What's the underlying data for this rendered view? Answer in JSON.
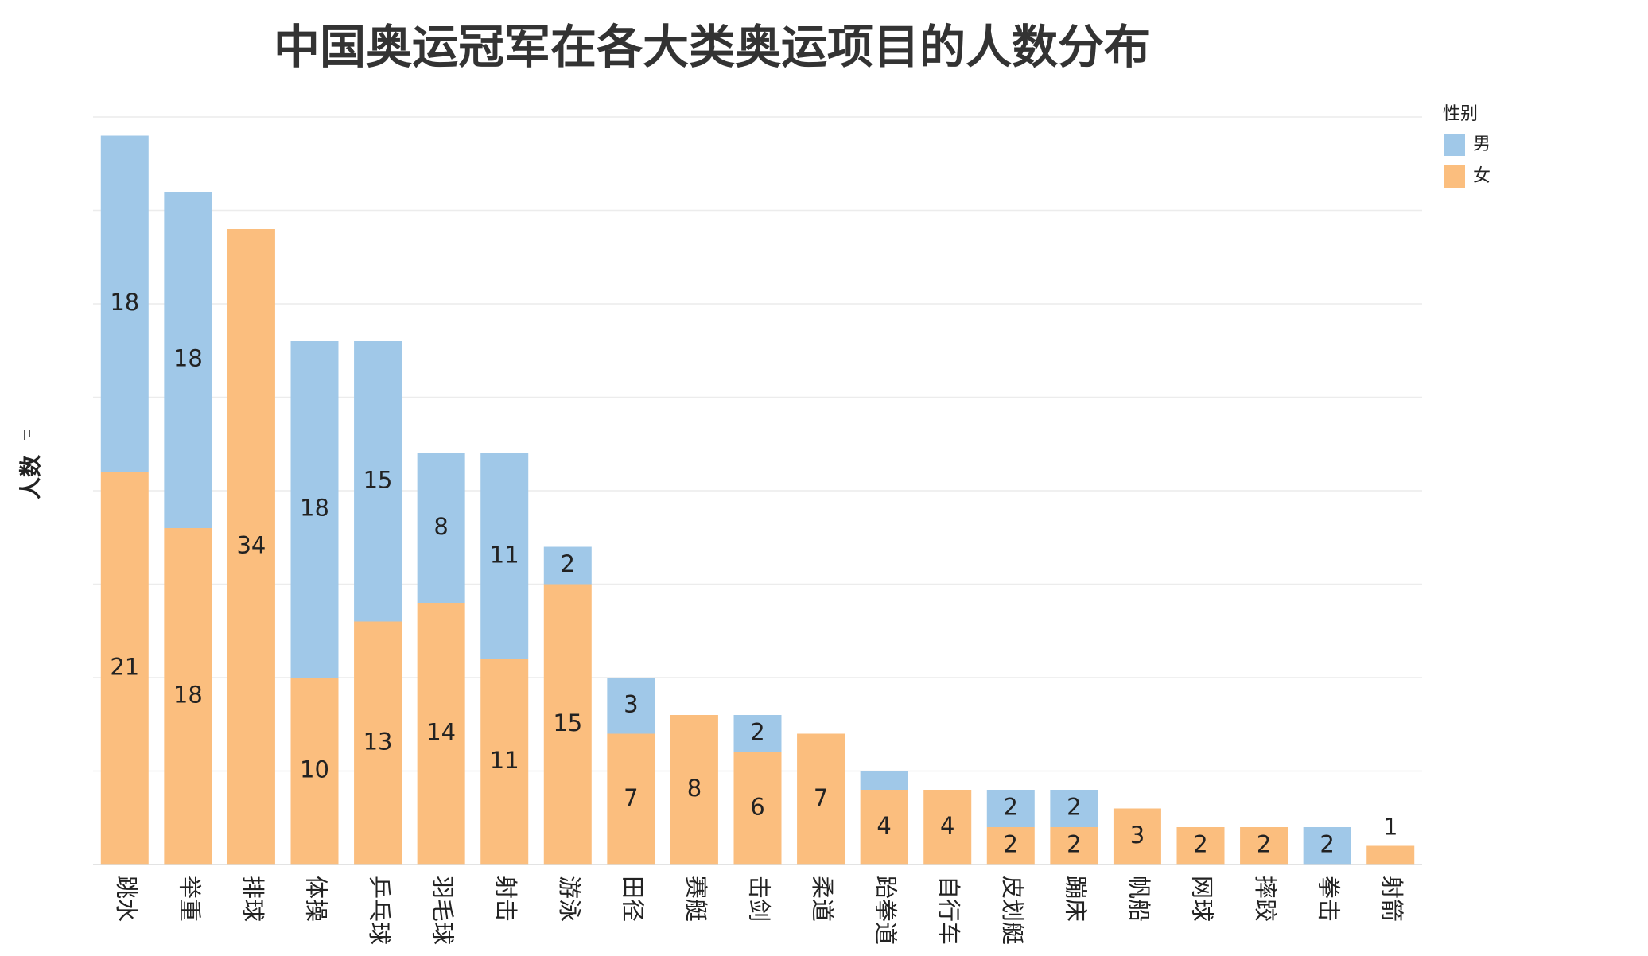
{
  "chart_data": {
    "type": "stacked-bar",
    "title": "中国奥运冠军在各大类奥运项目的人数分布",
    "y_label": "人数",
    "legend_title": "性别",
    "categories": [
      "跳水",
      "举重",
      "排球",
      "体操",
      "乒乓球",
      "羽毛球",
      "射击",
      "游泳",
      "田径",
      "赛艇",
      "击剑",
      "柔道",
      "跆拳道",
      "自行车",
      "皮划艇",
      "蹦床",
      "帆船",
      "网球",
      "摔跤",
      "拳击",
      "射箭"
    ],
    "series": [
      {
        "name": "女",
        "color": "#fbbe7e",
        "values": [
          21,
          18,
          34,
          10,
          13,
          14,
          11,
          15,
          7,
          8,
          6,
          7,
          4,
          4,
          2,
          2,
          3,
          2,
          2,
          null,
          1
        ],
        "value_labels": [
          "21",
          "18",
          "34",
          "10",
          "13",
          "14",
          "11",
          "15",
          "7",
          "8",
          "6",
          "7",
          "4",
          "4",
          "2",
          "2",
          "3",
          "2",
          "2",
          null,
          "1"
        ]
      },
      {
        "name": "男",
        "color": "#a0c8e8",
        "values": [
          18,
          18,
          null,
          18,
          15,
          8,
          11,
          2,
          3,
          null,
          2,
          null,
          1,
          null,
          2,
          2,
          null,
          null,
          null,
          2,
          null
        ],
        "value_labels": [
          "18",
          "18",
          null,
          "18",
          "15",
          "8",
          "11",
          "2",
          "3",
          null,
          "2",
          null,
          null,
          null,
          "2",
          "2",
          null,
          null,
          null,
          "2",
          null
        ]
      }
    ],
    "ylim": [
      0,
      40
    ],
    "yticks": [
      0,
      5,
      10,
      15,
      20,
      25,
      30,
      35,
      40
    ],
    "show_ytick_labels": false,
    "grid": true
  }
}
